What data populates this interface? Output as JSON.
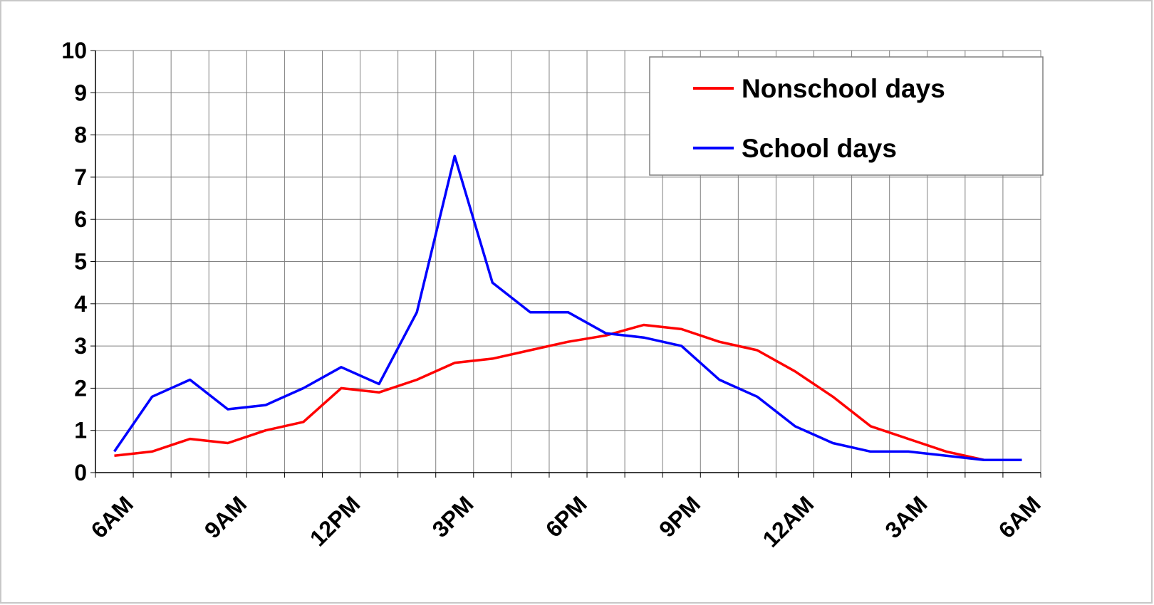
{
  "chart_data": {
    "type": "line",
    "categories": [
      "6AM",
      null,
      null,
      "9AM",
      null,
      null,
      "12PM",
      null,
      null,
      "3PM",
      null,
      null,
      "6PM",
      null,
      null,
      "9PM",
      null,
      null,
      "12AM",
      null,
      null,
      "3AM",
      null,
      null,
      "6AM"
    ],
    "series": [
      {
        "name": "Nonschool days",
        "color": "#ff0000",
        "values": [
          0.4,
          0.5,
          0.8,
          0.7,
          1.0,
          1.2,
          2.0,
          1.9,
          2.2,
          2.6,
          2.7,
          2.9,
          3.1,
          3.25,
          3.5,
          3.4,
          3.1,
          2.9,
          2.4,
          1.8,
          1.1,
          0.8,
          0.5,
          0.3,
          0.3
        ]
      },
      {
        "name": "School days",
        "color": "#0000ff",
        "values": [
          0.5,
          1.8,
          2.2,
          1.5,
          1.6,
          2.0,
          2.5,
          2.1,
          3.8,
          7.5,
          4.5,
          3.8,
          3.8,
          3.3,
          3.2,
          3.0,
          2.2,
          1.8,
          1.1,
          0.7,
          0.5,
          0.5,
          0.4,
          0.3,
          0.3
        ]
      }
    ],
    "ylim": [
      0,
      10
    ],
    "yticks": [
      0,
      1,
      2,
      3,
      4,
      5,
      6,
      7,
      8,
      9,
      10
    ],
    "grid": true,
    "legend": "top-right"
  }
}
